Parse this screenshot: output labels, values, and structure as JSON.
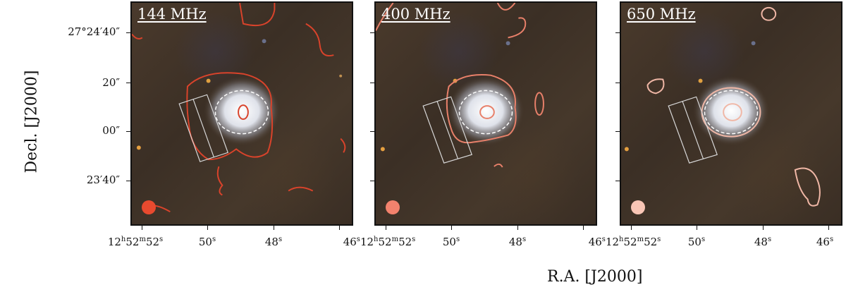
{
  "panels": [
    {
      "label": "144 MHz",
      "contour_color": "#d9432b",
      "beam_color": "#e84a2f"
    },
    {
      "label": "400 MHz",
      "contour_color": "#e8806a",
      "beam_color": "#f3826d"
    },
    {
      "label": "650 MHz",
      "contour_color": "#f0b7a6",
      "beam_color": "#f9c6b6"
    }
  ],
  "y_axis": {
    "title": "Decl. [J2000]",
    "ticks": [
      "27°24′40″",
      "20″",
      "00″",
      "23′40″"
    ]
  },
  "x_axis": {
    "title": "R.A. [J2000]",
    "ticks": [
      "12h52m52s",
      "50s",
      "48s",
      "46s"
    ]
  }
}
